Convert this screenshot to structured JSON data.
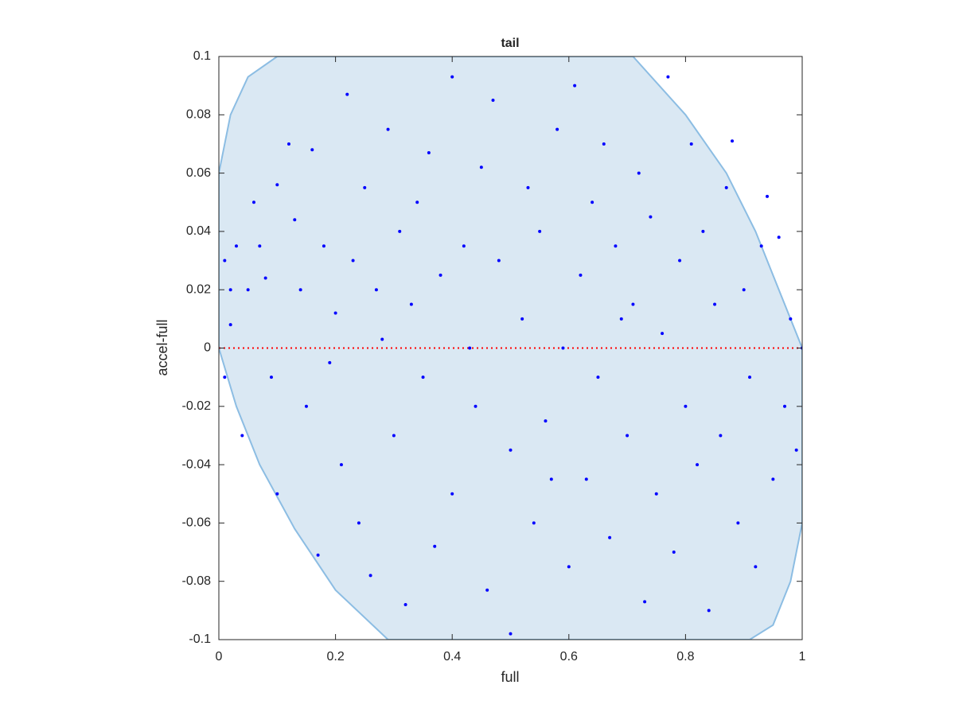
{
  "chart_data": {
    "type": "scatter",
    "title": "tail",
    "x_label": "full",
    "y_label": "accel-full",
    "xlim": [
      0,
      1
    ],
    "ylim": [
      -0.1,
      0.1
    ],
    "xticks": [
      0,
      0.2,
      0.4,
      0.6,
      0.8,
      1
    ],
    "yticks": [
      -0.1,
      -0.08,
      -0.06,
      -0.04,
      -0.02,
      0,
      0.02,
      0.04,
      0.06,
      0.08,
      0.1
    ],
    "hline": 0,
    "hline_color": "#ff0000",
    "region": {
      "color": "#dae8f3",
      "edge_color": "#8cbde3",
      "x": [
        0,
        0.02,
        0.05,
        0.1,
        0.71,
        0.8,
        0.87,
        0.92,
        0.96,
        0.99,
        1,
        1,
        0.98,
        0.95,
        0.91,
        0.29,
        0.2,
        0.13,
        0.07,
        0.03,
        0
      ],
      "y": [
        0.06,
        0.08,
        0.093,
        0.1,
        0.1,
        0.08,
        0.06,
        0.04,
        0.02,
        0.005,
        0,
        -0.06,
        -0.08,
        -0.095,
        -0.1,
        -0.1,
        -0.083,
        -0.062,
        -0.04,
        -0.02,
        0
      ]
    },
    "series": [
      {
        "color": "#0000ff",
        "x": [
          0.01,
          0.02,
          0.03,
          0.01,
          0.02,
          0.04,
          0.05,
          0.06,
          0.07,
          0.08,
          0.09,
          0.1,
          0.1,
          0.12,
          0.13,
          0.14,
          0.15,
          0.16,
          0.17,
          0.18,
          0.2,
          0.21,
          0.22,
          0.23,
          0.24,
          0.25,
          0.26,
          0.28,
          0.29,
          0.3,
          0.31,
          0.32,
          0.33,
          0.34,
          0.35,
          0.36,
          0.37,
          0.38,
          0.4,
          0.4,
          0.42,
          0.43,
          0.44,
          0.45,
          0.46,
          0.47,
          0.48,
          0.5,
          0.5,
          0.52,
          0.53,
          0.54,
          0.55,
          0.56,
          0.58,
          0.59,
          0.6,
          0.61,
          0.62,
          0.63,
          0.64,
          0.65,
          0.66,
          0.67,
          0.68,
          0.7,
          0.71,
          0.72,
          0.73,
          0.74,
          0.75,
          0.76,
          0.77,
          0.78,
          0.79,
          0.8,
          0.81,
          0.82,
          0.83,
          0.84,
          0.85,
          0.86,
          0.87,
          0.88,
          0.89,
          0.9,
          0.91,
          0.92,
          0.93,
          0.94,
          0.95,
          0.96,
          0.97,
          0.98,
          0.99,
          1,
          0.19,
          0.27,
          0.57,
          0.69
        ],
        "y": [
          0.03,
          0.02,
          0.035,
          -0.01,
          0.008,
          -0.03,
          0.02,
          0.05,
          0.035,
          0.024,
          -0.01,
          0.056,
          -0.05,
          0.07,
          0.044,
          0.02,
          -0.02,
          0.068,
          -0.071,
          0.035,
          0.012,
          -0.04,
          0.087,
          0.03,
          -0.06,
          0.055,
          -0.078,
          0.003,
          0.075,
          -0.03,
          0.04,
          -0.088,
          0.015,
          0.05,
          -0.01,
          0.067,
          -0.068,
          0.025,
          0.093,
          -0.05,
          0.035,
          0,
          -0.02,
          0.062,
          -0.083,
          0.085,
          0.03,
          -0.035,
          -0.098,
          0.01,
          0.055,
          -0.06,
          0.04,
          -0.025,
          0.075,
          0,
          -0.075,
          0.09,
          0.025,
          -0.045,
          0.05,
          -0.01,
          0.07,
          -0.065,
          0.035,
          -0.03,
          0.015,
          0.06,
          -0.087,
          0.045,
          -0.05,
          0.005,
          0.093,
          -0.07,
          0.03,
          -0.02,
          0.07,
          -0.04,
          0.04,
          -0.09,
          0.015,
          -0.03,
          0.055,
          0.071,
          -0.06,
          0.02,
          -0.01,
          -0.075,
          0.035,
          0.052,
          -0.045,
          0.038,
          -0.02,
          0.01,
          -0.035,
          0,
          -0.005,
          0.02,
          -0.045,
          0.01
        ]
      }
    ]
  }
}
